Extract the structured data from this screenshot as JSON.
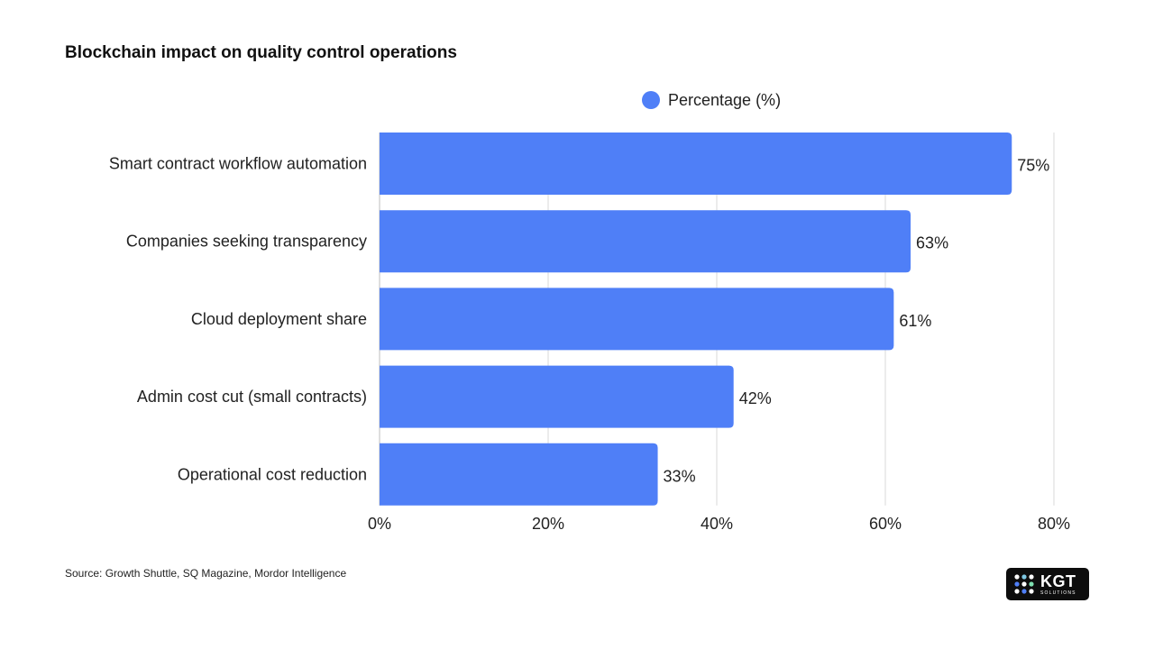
{
  "chart_data": {
    "type": "bar",
    "orientation": "horizontal",
    "title": "Blockchain impact on quality control operations",
    "legend": {
      "label": "Percentage (%)",
      "position": "top-center"
    },
    "categories": [
      "Smart contract workflow automation",
      "Companies seeking transparency",
      "Cloud deployment share",
      "Admin cost cut (small contracts)",
      "Operational cost reduction"
    ],
    "values": [
      75,
      63,
      61,
      42,
      33
    ],
    "value_labels": [
      "75%",
      "63%",
      "61%",
      "42%",
      "33%"
    ],
    "xlim": [
      0,
      80
    ],
    "xticks": [
      0,
      20,
      40,
      60,
      80
    ],
    "xtick_labels": [
      "0%",
      "20%",
      "40%",
      "60%",
      "80%"
    ],
    "grid": true,
    "bar_color": "#4f7ff7",
    "grid_color": "#d9d9d9"
  },
  "footer": {
    "source": "Source: Growth Shuttle, SQ Magazine, Mordor Intelligence"
  },
  "logo": {
    "name": "KGT",
    "subtitle": "SOLUTIONS",
    "icon": "kgt-dots-icon"
  }
}
